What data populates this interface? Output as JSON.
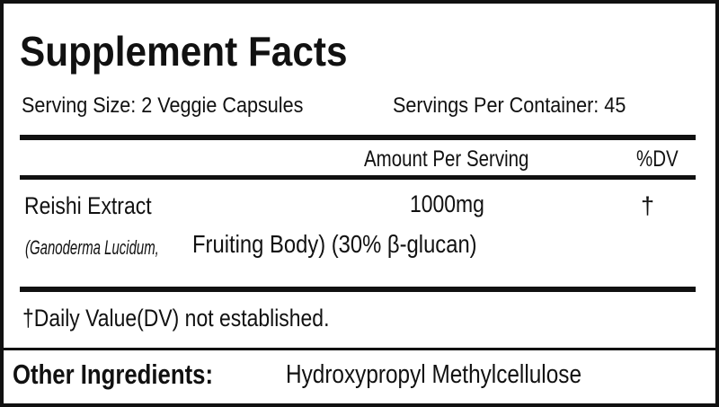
{
  "title": "Supplement Facts",
  "serving_size": "Serving Size: 2 Veggie Capsules",
  "servings_per_container": "Servings Per Container: 45",
  "header": {
    "amount": "Amount Per Serving",
    "dv": "%DV"
  },
  "ingredients": [
    {
      "name": "Reishi Extract",
      "amount": "1000mg",
      "dv": "†",
      "detail_italic": "(Ganoderma Lucidum,",
      "detail": "Fruiting Body) (30% β-glucan)"
    }
  ],
  "footnote": "†Daily Value(DV) not established.",
  "other_ingredients": {
    "label": "Other Ingredients:",
    "value": "Hydroxypropyl Methylcellulose"
  }
}
